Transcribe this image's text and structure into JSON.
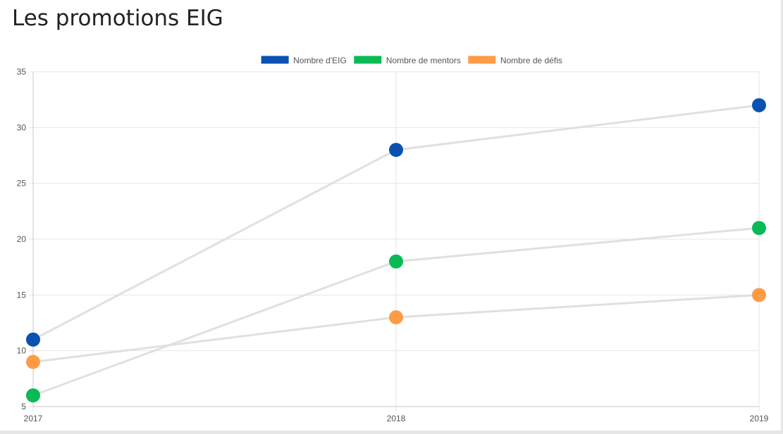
{
  "page": {
    "title": "Les promotions EIG"
  },
  "chart_data": {
    "type": "line",
    "title": "",
    "xlabel": "",
    "ylabel": "",
    "categories": [
      "2017",
      "2018",
      "2019"
    ],
    "ylim": [
      5,
      35
    ],
    "yticks": [
      5,
      10,
      15,
      20,
      25,
      30,
      35
    ],
    "grid": true,
    "legend_position": "top",
    "line_color": "#e0e0e0",
    "series": [
      {
        "name": "Nombre d'EIG",
        "color": "#0a51b3",
        "values": [
          11,
          28,
          32
        ]
      },
      {
        "name": "Nombre de mentors",
        "color": "#0aba55",
        "values": [
          6,
          18,
          21
        ]
      },
      {
        "name": "Nombre de défis",
        "color": "#ff9b45",
        "values": [
          9,
          13,
          15
        ]
      }
    ]
  }
}
